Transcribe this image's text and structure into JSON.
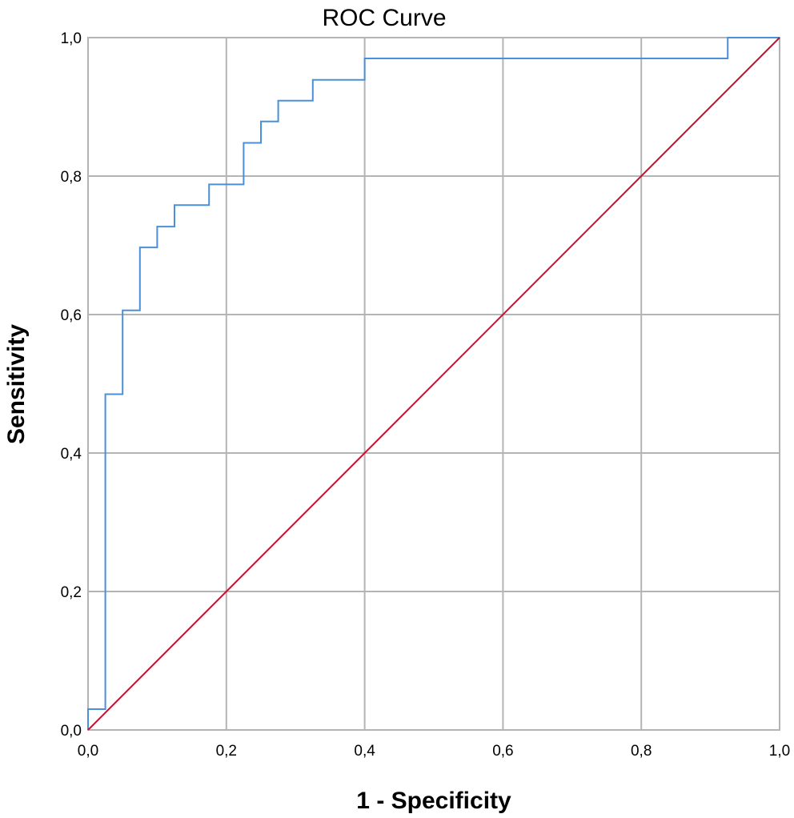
{
  "chart_data": {
    "type": "line",
    "title": "ROC Curve",
    "xlabel": "1 - Specificity",
    "ylabel": "Sensitivity",
    "xlim": [
      0,
      1
    ],
    "ylim": [
      0,
      1
    ],
    "xticks": [
      "0,0",
      "0,2",
      "0,4",
      "0,6",
      "0,8",
      "1,0"
    ],
    "yticks": [
      "0,0",
      "0,2",
      "0,4",
      "0,6",
      "0,8",
      "1,0"
    ],
    "grid": true,
    "colors": {
      "roc": "#4a90d9",
      "reference": "#c8102e",
      "grid": "#b4b4b4"
    },
    "series": [
      {
        "name": "",
        "x": [
          0,
          0,
          0.025,
          0.025,
          0.05,
          0.05,
          0.075,
          0.075,
          0.1,
          0.1,
          0.125,
          0.125,
          0.175,
          0.175,
          0.225,
          0.225,
          0.25,
          0.25,
          0.275,
          0.275,
          0.325,
          0.325,
          0.4,
          0.4,
          0.925,
          0.925,
          1.0
        ],
        "y": [
          0,
          0.03,
          0.03,
          0.485,
          0.485,
          0.606,
          0.606,
          0.697,
          0.697,
          0.727,
          0.727,
          0.758,
          0.758,
          0.788,
          0.788,
          0.848,
          0.848,
          0.879,
          0.879,
          0.909,
          0.909,
          0.939,
          0.939,
          0.97,
          0.97,
          1.0,
          1.0
        ]
      },
      {
        "name": "",
        "x": [
          0,
          1
        ],
        "y": [
          0,
          1
        ]
      }
    ]
  }
}
